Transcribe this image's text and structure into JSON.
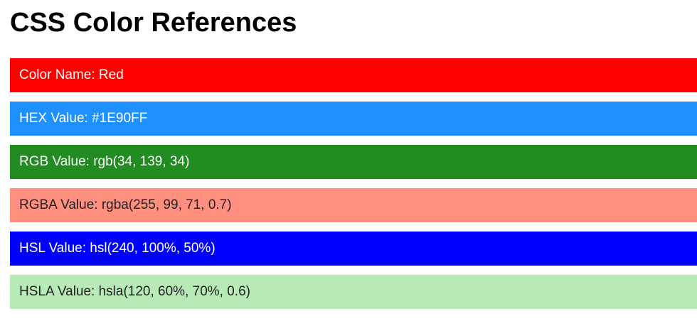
{
  "page": {
    "title": "CSS Color References"
  },
  "colors": [
    {
      "label": "Color Name: Red",
      "background": "#FF0000",
      "text_color": "#FFFFFF"
    },
    {
      "label": "HEX Value: #1E90FF",
      "background": "#1E90FF",
      "text_color": "#FFFFFF"
    },
    {
      "label": "RGB Value: rgb(34, 139, 34)",
      "background": "#228B22",
      "text_color": "#FFFFFF"
    },
    {
      "label": "RGBA Value: rgba(255, 99, 71, 0.7)",
      "background": "#FF8F7F",
      "text_color": "#222222"
    },
    {
      "label": "HSL Value: hsl(240, 100%, 50%)",
      "background": "#0000FF",
      "text_color": "#FFFFFF"
    },
    {
      "label": "HSLA Value: hsla(120, 60%, 70%, 0.6)",
      "background": "#B8EAB8",
      "text_color": "#222222"
    }
  ]
}
